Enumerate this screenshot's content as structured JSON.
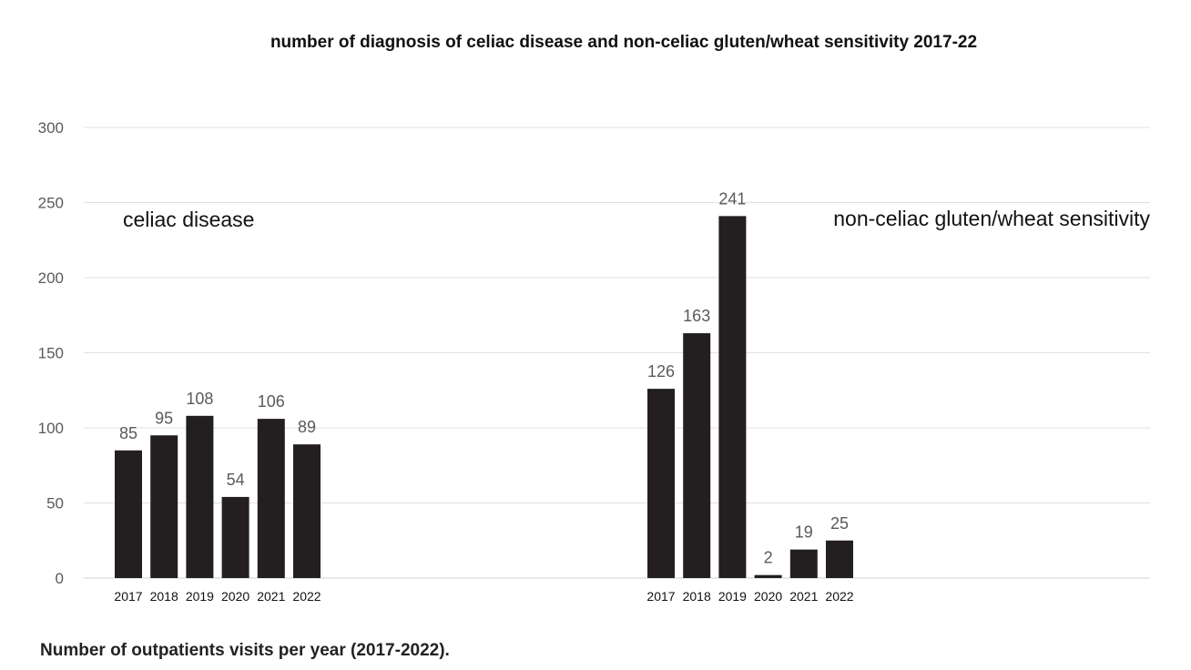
{
  "title": "number of diagnosis of celiac disease and non-celiac gluten/wheat sensitivity 2017-22",
  "caption": "Number of outpatients visits per year (2017-2022).",
  "chart_data": {
    "type": "bar",
    "ylim": [
      0,
      300
    ],
    "yticks": [
      0,
      50,
      100,
      150,
      200,
      250,
      300
    ],
    "grid": true,
    "bar_color": "#231f20",
    "groups": [
      {
        "label": "celiac disease",
        "categories": [
          "2017",
          "2018",
          "2019",
          "2020",
          "2021",
          "2022"
        ],
        "values": [
          85,
          95,
          108,
          54,
          106,
          89
        ]
      },
      {
        "label": "non-celiac gluten/wheat sensitivity",
        "categories": [
          "2017",
          "2018",
          "2019",
          "2020",
          "2021",
          "2022"
        ],
        "values": [
          126,
          163,
          241,
          2,
          19,
          25
        ]
      }
    ]
  }
}
